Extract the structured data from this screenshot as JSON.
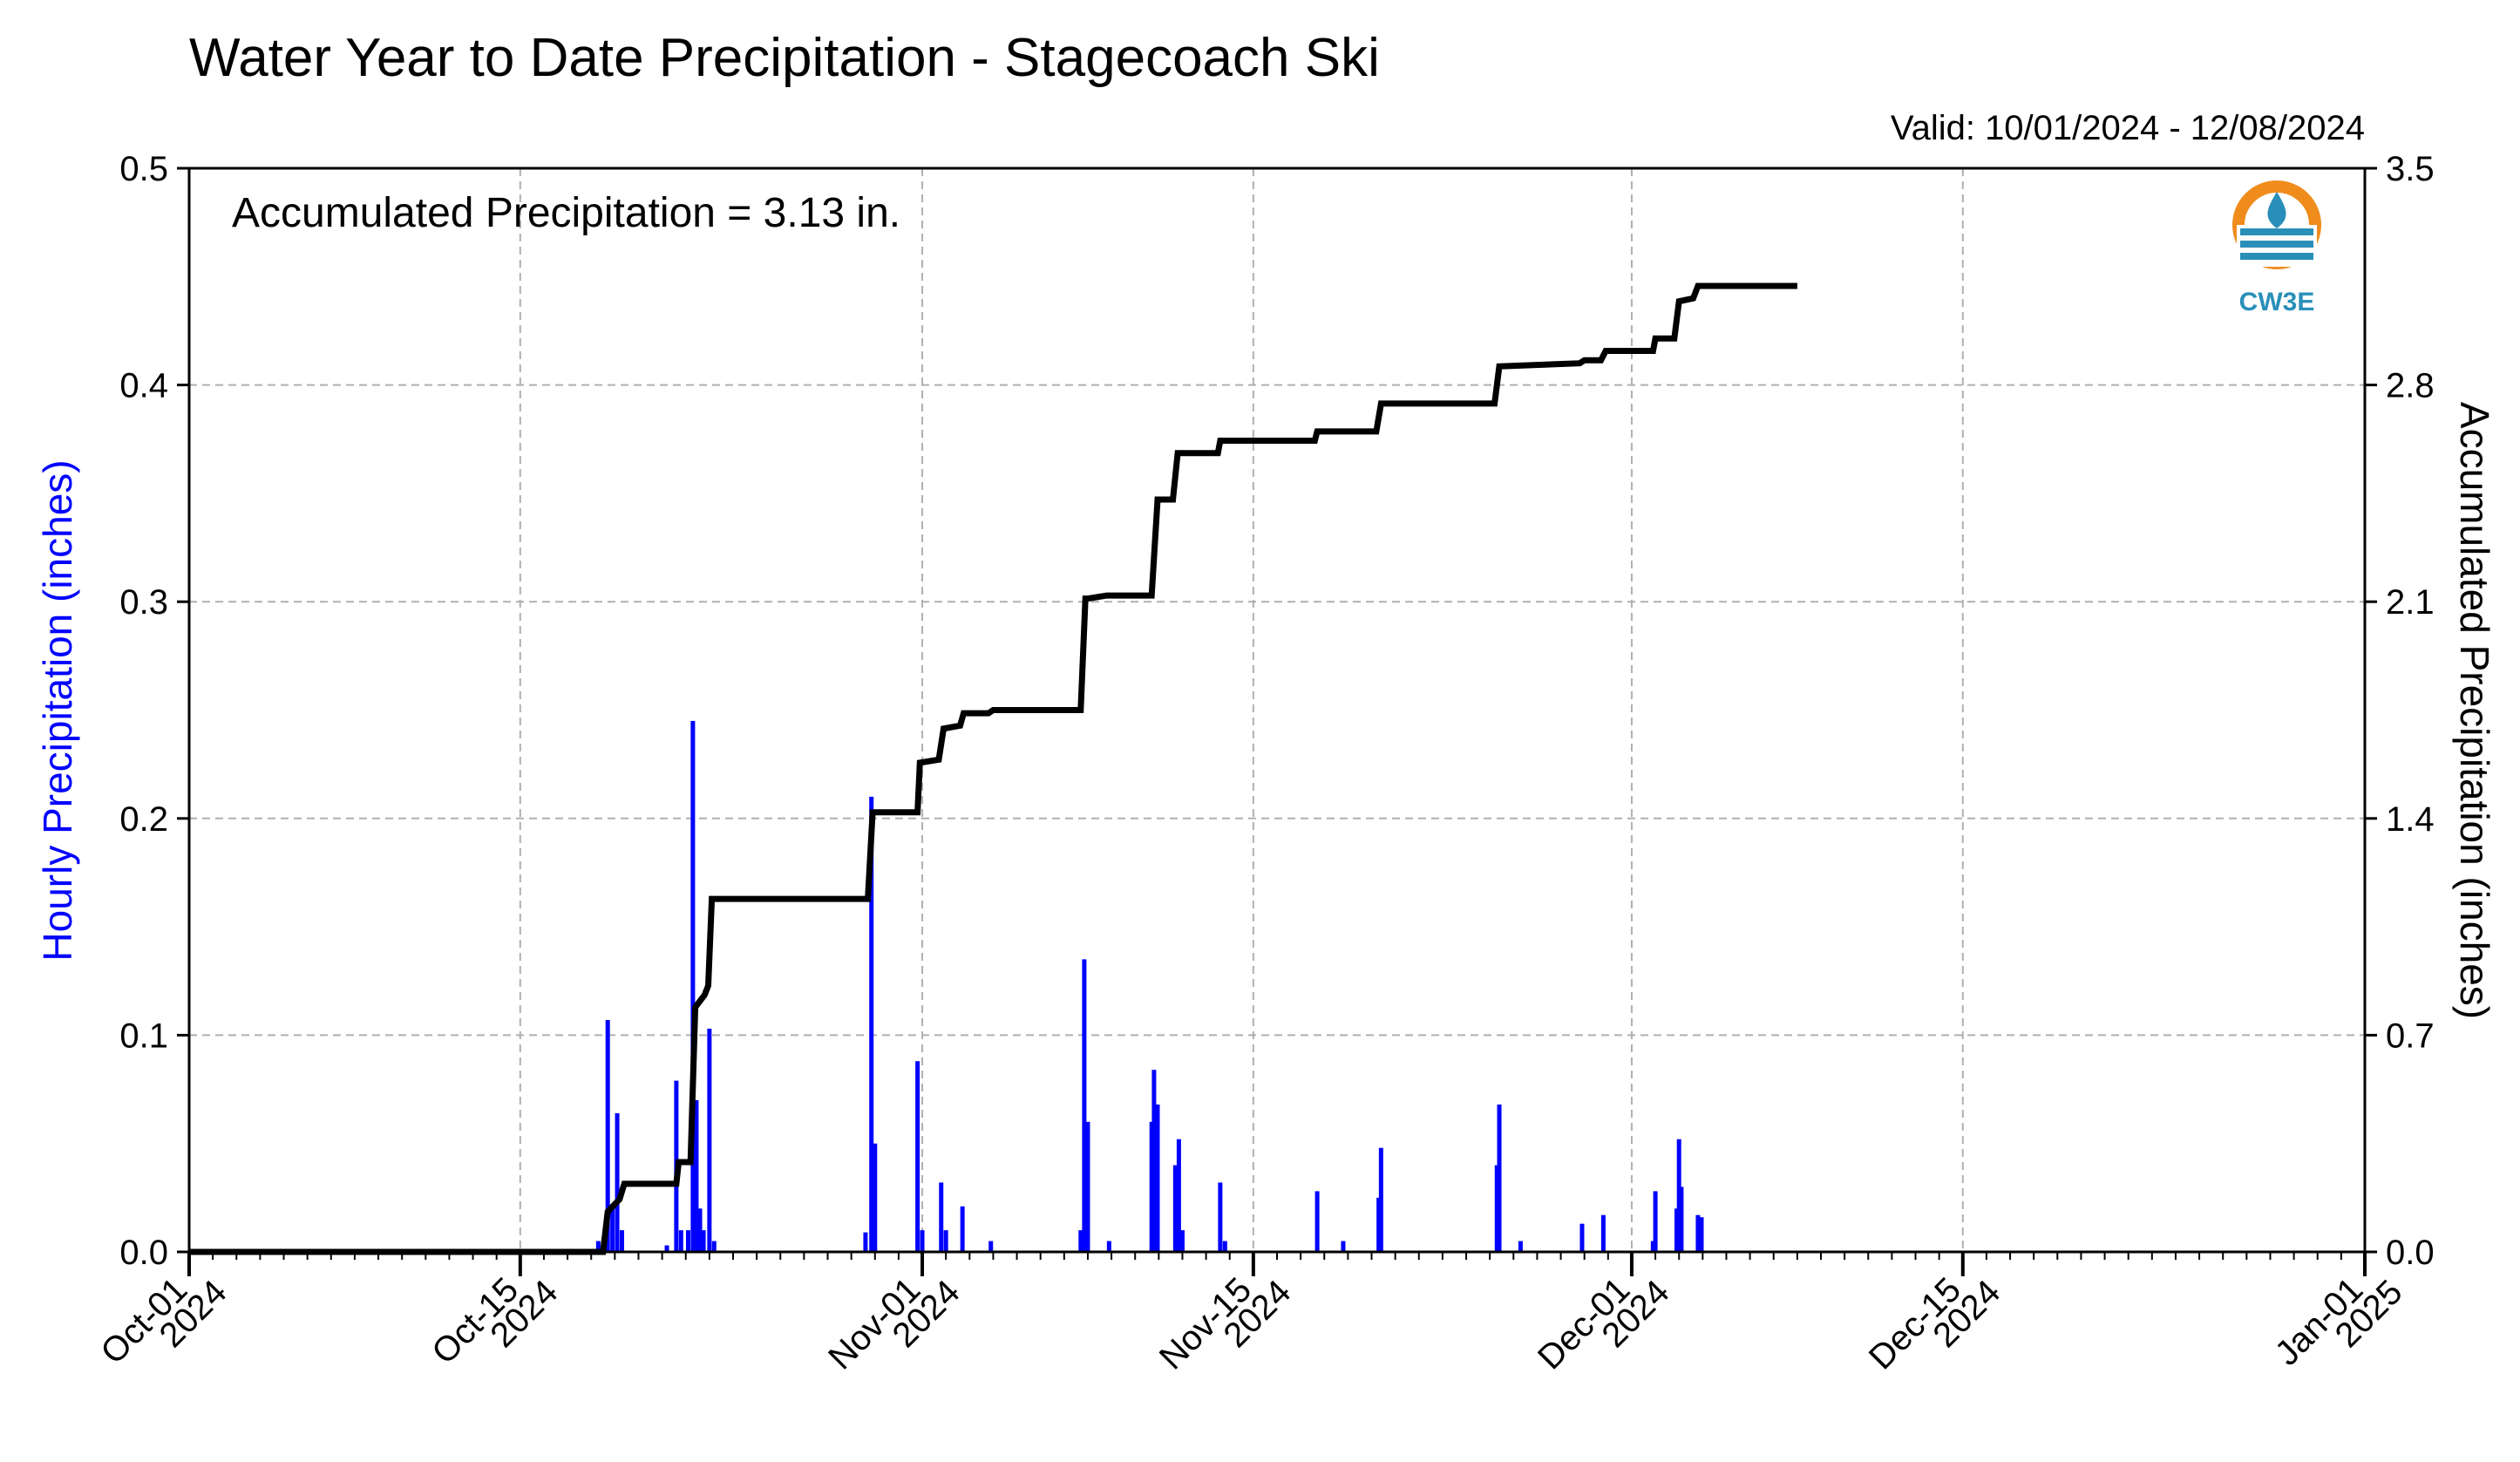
{
  "chart_data": {
    "type": "bar+line",
    "title": "Water Year to Date Precipitation - Stagecoach Ski",
    "valid_text": "Valid: 10/01/2024 - 12/08/2024",
    "annotation": "Accumulated Precipitation = 3.13 in.",
    "ylabel_left": "Hourly Precipitation (inches)",
    "ylabel_right": "Accumulated Precipitation (inches)",
    "ylim_left": [
      0,
      0.5
    ],
    "ylim_right": [
      0,
      3.5
    ],
    "xlim_days": [
      0,
      92
    ],
    "grid": true,
    "left_ticks": [
      "0.0",
      "0.1",
      "0.2",
      "0.3",
      "0.4",
      "0.5"
    ],
    "right_ticks": [
      "0.0",
      "0.7",
      "1.4",
      "2.1",
      "2.8",
      "3.5"
    ],
    "x_ticks": [
      {
        "day": 0,
        "line1": "Oct-01",
        "line2": "2024"
      },
      {
        "day": 14,
        "line1": "Oct-15",
        "line2": "2024"
      },
      {
        "day": 31,
        "line1": "Nov-01",
        "line2": "2024"
      },
      {
        "day": 45,
        "line1": "Nov-15",
        "line2": "2024"
      },
      {
        "day": 61,
        "line1": "Dec-01",
        "line2": "2024"
      },
      {
        "day": 75,
        "line1": "Dec-15",
        "line2": "2024"
      },
      {
        "day": 92,
        "line1": "Jan-01",
        "line2": "2025"
      }
    ],
    "series": [
      {
        "name": "Hourly Precipitation",
        "color": "#0000ff",
        "kind": "bar",
        "points": [
          [
            17.3,
            0.005
          ],
          [
            17.7,
            0.107
          ],
          [
            17.9,
            0.02
          ],
          [
            18.1,
            0.064
          ],
          [
            18.3,
            0.01
          ],
          [
            20.2,
            0.003
          ],
          [
            20.6,
            0.079
          ],
          [
            20.8,
            0.01
          ],
          [
            21.1,
            0.01
          ],
          [
            21.3,
            0.245
          ],
          [
            21.45,
            0.07
          ],
          [
            21.6,
            0.02
          ],
          [
            21.75,
            0.01
          ],
          [
            22.0,
            0.103
          ],
          [
            22.2,
            0.005
          ],
          [
            28.6,
            0.009
          ],
          [
            28.85,
            0.21
          ],
          [
            29.0,
            0.05
          ],
          [
            30.8,
            0.088
          ],
          [
            31.0,
            0.01
          ],
          [
            31.8,
            0.032
          ],
          [
            32.0,
            0.01
          ],
          [
            32.7,
            0.021
          ],
          [
            33.9,
            0.005
          ],
          [
            37.7,
            0.01
          ],
          [
            37.85,
            0.135
          ],
          [
            38.0,
            0.06
          ],
          [
            38.9,
            0.005
          ],
          [
            40.7,
            0.06
          ],
          [
            40.8,
            0.084
          ],
          [
            40.95,
            0.068
          ],
          [
            41.7,
            0.04
          ],
          [
            41.85,
            0.052
          ],
          [
            42.0,
            0.01
          ],
          [
            43.6,
            0.032
          ],
          [
            43.8,
            0.005
          ],
          [
            47.7,
            0.028
          ],
          [
            48.8,
            0.005
          ],
          [
            50.3,
            0.025
          ],
          [
            50.4,
            0.048
          ],
          [
            55.3,
            0.04
          ],
          [
            55.4,
            0.068
          ],
          [
            56.3,
            0.005
          ],
          [
            58.9,
            0.013
          ],
          [
            59.8,
            0.017
          ],
          [
            61.9,
            0.005
          ],
          [
            62.0,
            0.028
          ],
          [
            62.9,
            0.02
          ],
          [
            63.0,
            0.052
          ],
          [
            63.1,
            0.03
          ],
          [
            63.8,
            0.017
          ],
          [
            63.95,
            0.016
          ]
        ]
      },
      {
        "name": "Accumulated Precipitation",
        "color": "#000000",
        "kind": "step",
        "points": [
          [
            0,
            0.0
          ],
          [
            17.5,
            0.0
          ],
          [
            17.7,
            0.13
          ],
          [
            18.2,
            0.17
          ],
          [
            18.4,
            0.22
          ],
          [
            20.6,
            0.22
          ],
          [
            20.7,
            0.29
          ],
          [
            21.2,
            0.29
          ],
          [
            21.4,
            0.79
          ],
          [
            21.8,
            0.83
          ],
          [
            21.95,
            0.86
          ],
          [
            22.1,
            1.14
          ],
          [
            28.7,
            1.14
          ],
          [
            28.9,
            1.42
          ],
          [
            30.8,
            1.42
          ],
          [
            30.9,
            1.58
          ],
          [
            31.7,
            1.59
          ],
          [
            31.9,
            1.69
          ],
          [
            32.6,
            1.7
          ],
          [
            32.75,
            1.74
          ],
          [
            33.8,
            1.74
          ],
          [
            34.0,
            1.75
          ],
          [
            37.7,
            1.75
          ],
          [
            37.9,
            2.11
          ],
          [
            38.0,
            2.11
          ],
          [
            38.8,
            2.12
          ],
          [
            40.7,
            2.12
          ],
          [
            40.95,
            2.43
          ],
          [
            41.6,
            2.43
          ],
          [
            41.8,
            2.58
          ],
          [
            43.5,
            2.58
          ],
          [
            43.6,
            2.62
          ],
          [
            47.6,
            2.62
          ],
          [
            47.7,
            2.65
          ],
          [
            50.2,
            2.65
          ],
          [
            50.4,
            2.74
          ],
          [
            55.2,
            2.74
          ],
          [
            55.4,
            2.86
          ],
          [
            58.8,
            2.87
          ],
          [
            59.0,
            2.88
          ],
          [
            59.7,
            2.88
          ],
          [
            59.9,
            2.91
          ],
          [
            61.9,
            2.91
          ],
          [
            62.0,
            2.95
          ],
          [
            62.8,
            2.95
          ],
          [
            63.0,
            3.07
          ],
          [
            63.6,
            3.08
          ],
          [
            63.8,
            3.12
          ],
          [
            68.0,
            3.12
          ]
        ]
      }
    ]
  },
  "logo": {
    "text": "CW3E",
    "icon": "water-drop-logo-icon",
    "ring_color": "#f08c1c",
    "wave_color": "#2a8fb8"
  }
}
